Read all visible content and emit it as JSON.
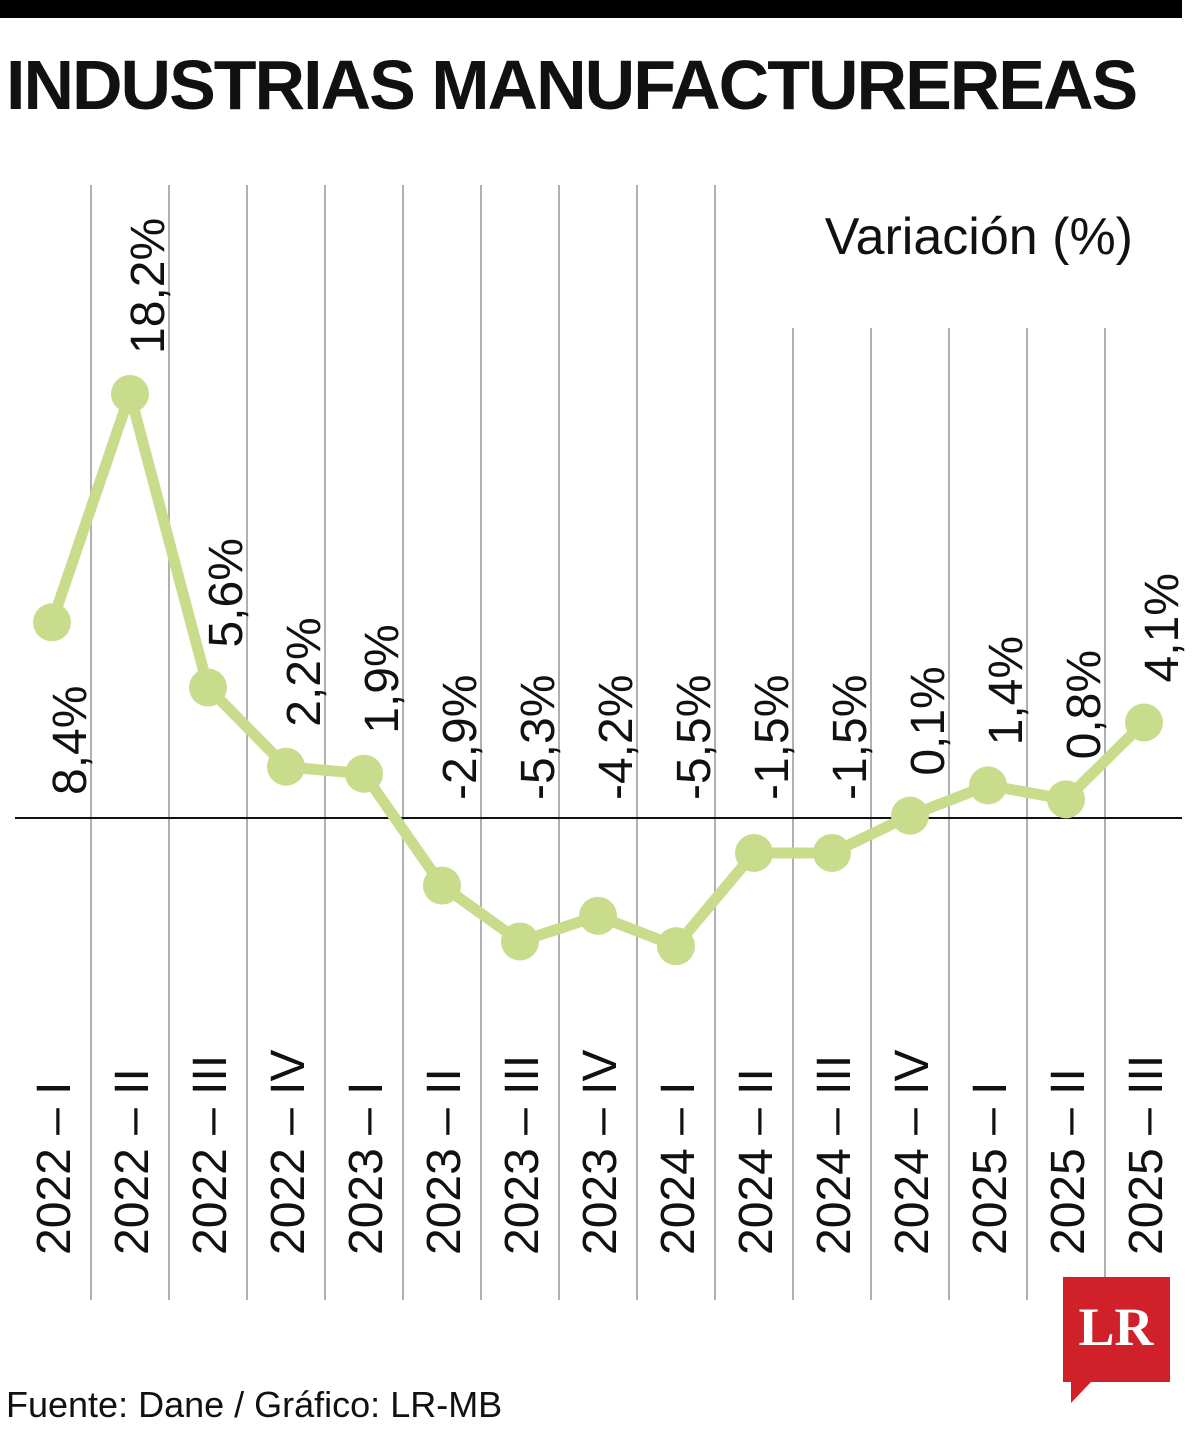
{
  "title": "INDUSTRIAS MANUFACTUREREAS",
  "source": "Fuente: Dane / Gráfico: LR-MB",
  "logo": {
    "text": "LR",
    "color": "#d0202a"
  },
  "colors": {
    "line": "#c8dc8c",
    "grid": "#b0b0b0",
    "text": "#111111"
  },
  "chart_data": {
    "type": "line",
    "title": "INDUSTRIAS MANUFACTUREREAS",
    "ylabel": "Variación (%)",
    "xlabel": "",
    "categories": [
      "2022 – I",
      "2022 – II",
      "2022 – III",
      "2022 – IV",
      "2023 – I",
      "2023 – II",
      "2023 – III",
      "2023 – IV",
      "2024 – I",
      "2024 – II",
      "2024 – III",
      "2024 – IV",
      "2025 – I",
      "2025 – II",
      "2025 – III"
    ],
    "series": [
      {
        "values": [
          8.4,
          18.2,
          5.6,
          2.2,
          1.9,
          -2.9,
          -5.3,
          -4.2,
          -5.5,
          -1.5,
          -1.5,
          0.1,
          1.4,
          0.8,
          4.1
        ],
        "labels": [
          "8,4%",
          "18,2%",
          "5,6%",
          "2,2%",
          "1,9%",
          "-2,9%",
          "-5,3%",
          "-4,2%",
          "-5,5%",
          "-1,5%",
          "-1,5%",
          "0,1%",
          "1,4%",
          "0,8%",
          "4,1%"
        ]
      }
    ],
    "ylim": [
      -5.5,
      18.2
    ],
    "grid": true,
    "legend": "none"
  }
}
